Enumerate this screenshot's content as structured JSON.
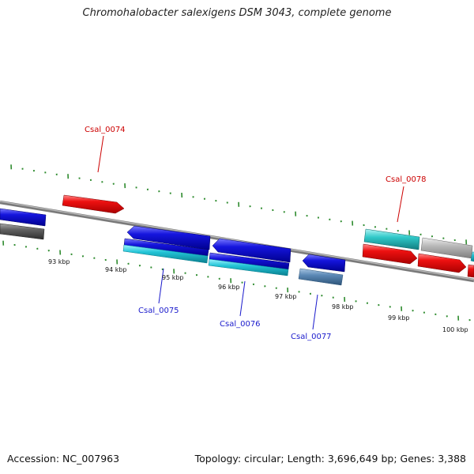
{
  "title": "Chromohalobacter salexigens DSM 3043, complete genome",
  "footer": {
    "accession": "Accession: NC_007963",
    "stats": "Topology: circular; Length: 3,696,649 bp; Genes: 3,388"
  },
  "colors": {
    "backbone": "#8e8e8e",
    "tick": "#2e8b2e",
    "label_red": "#cc0000",
    "label_blue": "#1a1acc",
    "gene_red": "#ee1111",
    "gene_blue": "#1515dd",
    "gene_cyan": "#22c4d6",
    "gene_teal": "#30c8c8",
    "gene_gray": "#b8b8b8",
    "gene_darkgray": "#606060",
    "gene_steel": "#5b88b5"
  },
  "scale_labels": [
    "93 kbp",
    "94 kbp",
    "95 kbp",
    "96 kbp",
    "97 kbp",
    "98 kbp",
    "99 kbp",
    "100 kbp"
  ],
  "gene_labels": [
    {
      "id": "Csal_0074",
      "color": "red"
    },
    {
      "id": "Csal_0075",
      "color": "blue"
    },
    {
      "id": "Csal_0076",
      "color": "blue"
    },
    {
      "id": "Csal_0077",
      "color": "blue"
    },
    {
      "id": "Csal_0078",
      "color": "red"
    }
  ]
}
